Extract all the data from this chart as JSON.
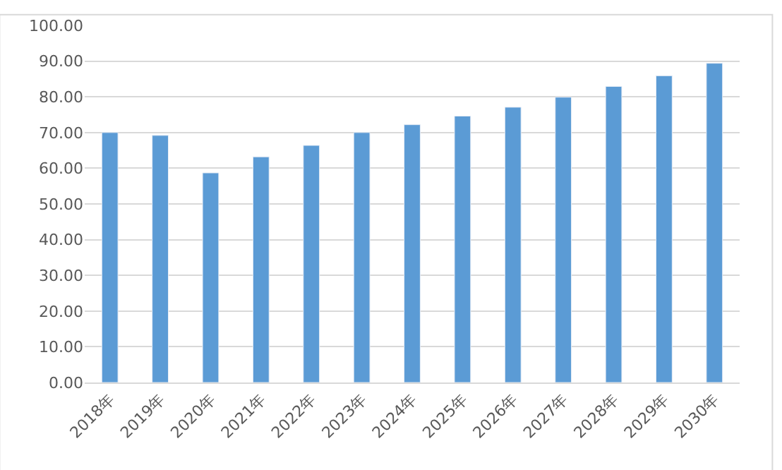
{
  "chart_data": {
    "type": "bar",
    "categories": [
      "2018年",
      "2019年",
      "2020年",
      "2021年",
      "2022年",
      "2023年",
      "2024年",
      "2025年",
      "2026年",
      "2027年",
      "2028年",
      "2029年",
      "2030年"
    ],
    "series": [
      {
        "color": "#5b9bd5",
        "values": [
          70.0,
          69.2,
          58.7,
          63.2,
          66.4,
          70.0,
          72.2,
          74.6,
          77.1,
          79.9,
          82.9,
          85.9,
          89.4
        ]
      }
    ],
    "ylim": [
      0,
      100
    ],
    "yticks": [
      {
        "value": 0,
        "label": "0.00"
      },
      {
        "value": 10,
        "label": "10.00"
      },
      {
        "value": 20,
        "label": "20.00"
      },
      {
        "value": 30,
        "label": "30.00"
      },
      {
        "value": 40,
        "label": "40.00"
      },
      {
        "value": 50,
        "label": "50.00"
      },
      {
        "value": 60,
        "label": "60.00"
      },
      {
        "value": 70,
        "label": "70.00"
      },
      {
        "value": 80,
        "label": "80.00"
      },
      {
        "value": 90,
        "label": "90.00"
      },
      {
        "value": 100,
        "label": "100.00"
      }
    ],
    "grid": "y"
  }
}
